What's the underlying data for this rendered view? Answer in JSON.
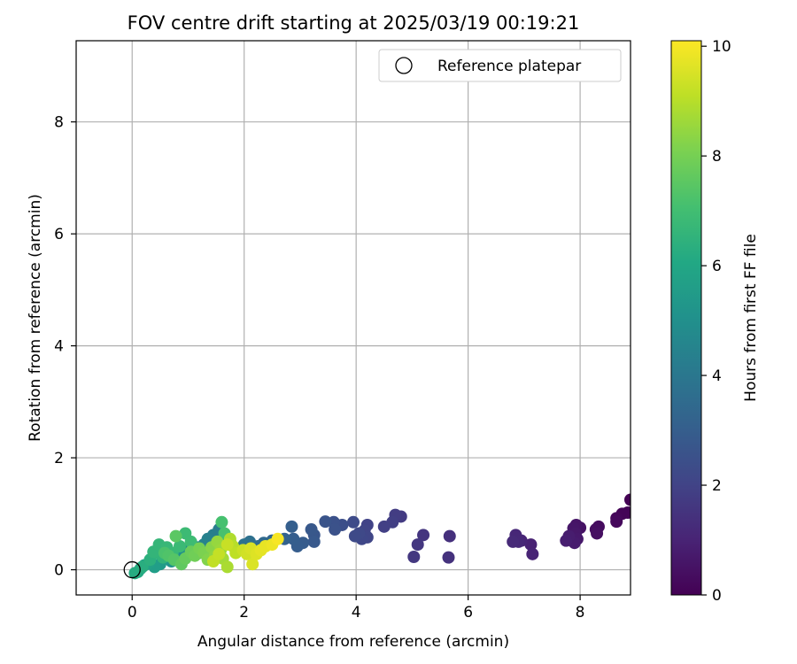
{
  "chart_data": {
    "type": "scatter",
    "title": "FOV centre drift starting at 2025/03/19 00:19:21",
    "xlabel": "Angular distance from reference (arcmin)",
    "ylabel": "Rotation from reference (arcmin)",
    "xlim": [
      -1,
      8.9
    ],
    "ylim": [
      -0.45,
      9.45
    ],
    "xticks": [
      "0",
      "2",
      "4",
      "6",
      "8"
    ],
    "yticks": [
      "0",
      "2",
      "4",
      "6",
      "8"
    ],
    "grid": true,
    "legend": {
      "position": "top-right",
      "entries": [
        "Reference platepar"
      ]
    },
    "reference_point": {
      "x": 0,
      "y": 0
    },
    "colorbar": {
      "label": "Hours from first FF file",
      "range": [
        0,
        10.1
      ],
      "ticks": [
        "0",
        "2",
        "4",
        "6",
        "8",
        "10"
      ],
      "colormap": "viridis"
    },
    "points": [
      {
        "x": 8.9,
        "y": 1.25,
        "h": 0.0
      },
      {
        "x": 8.85,
        "y": 1.02,
        "h": 0.05
      },
      {
        "x": 8.75,
        "y": 1.0,
        "h": 0.1
      },
      {
        "x": 8.65,
        "y": 0.92,
        "h": 0.15
      },
      {
        "x": 8.65,
        "y": 0.86,
        "h": 0.2
      },
      {
        "x": 8.33,
        "y": 0.77,
        "h": 0.3
      },
      {
        "x": 8.28,
        "y": 0.72,
        "h": 0.35
      },
      {
        "x": 8.3,
        "y": 0.65,
        "h": 0.4
      },
      {
        "x": 8.0,
        "y": 0.75,
        "h": 0.5
      },
      {
        "x": 7.93,
        "y": 0.8,
        "h": 0.55
      },
      {
        "x": 7.88,
        "y": 0.74,
        "h": 0.6
      },
      {
        "x": 7.92,
        "y": 0.65,
        "h": 0.65
      },
      {
        "x": 7.95,
        "y": 0.55,
        "h": 0.7
      },
      {
        "x": 7.9,
        "y": 0.48,
        "h": 0.75
      },
      {
        "x": 7.8,
        "y": 0.6,
        "h": 0.8
      },
      {
        "x": 7.75,
        "y": 0.52,
        "h": 0.85
      },
      {
        "x": 7.12,
        "y": 0.45,
        "h": 0.95
      },
      {
        "x": 7.15,
        "y": 0.28,
        "h": 1.0
      },
      {
        "x": 6.95,
        "y": 0.52,
        "h": 1.05
      },
      {
        "x": 6.85,
        "y": 0.62,
        "h": 1.1
      },
      {
        "x": 6.9,
        "y": 0.5,
        "h": 1.15
      },
      {
        "x": 6.8,
        "y": 0.5,
        "h": 1.2
      },
      {
        "x": 5.67,
        "y": 0.6,
        "h": 1.4
      },
      {
        "x": 5.65,
        "y": 0.22,
        "h": 1.45
      },
      {
        "x": 5.2,
        "y": 0.62,
        "h": 1.55
      },
      {
        "x": 5.1,
        "y": 0.45,
        "h": 1.6
      },
      {
        "x": 5.03,
        "y": 0.23,
        "h": 1.65
      },
      {
        "x": 4.8,
        "y": 0.95,
        "h": 1.75
      },
      {
        "x": 4.7,
        "y": 0.98,
        "h": 1.8
      },
      {
        "x": 4.65,
        "y": 0.85,
        "h": 1.85
      },
      {
        "x": 4.5,
        "y": 0.77,
        "h": 1.9
      },
      {
        "x": 4.2,
        "y": 0.8,
        "h": 2.0
      },
      {
        "x": 4.15,
        "y": 0.7,
        "h": 2.05
      },
      {
        "x": 4.2,
        "y": 0.58,
        "h": 2.1
      },
      {
        "x": 4.1,
        "y": 0.55,
        "h": 2.15
      },
      {
        "x": 4.05,
        "y": 0.65,
        "h": 2.2
      },
      {
        "x": 3.98,
        "y": 0.6,
        "h": 2.25
      },
      {
        "x": 3.95,
        "y": 0.85,
        "h": 2.3
      },
      {
        "x": 3.75,
        "y": 0.8,
        "h": 2.4
      },
      {
        "x": 3.6,
        "y": 0.85,
        "h": 2.5
      },
      {
        "x": 3.62,
        "y": 0.72,
        "h": 2.55
      },
      {
        "x": 3.45,
        "y": 0.86,
        "h": 2.6
      },
      {
        "x": 3.25,
        "y": 0.62,
        "h": 2.7
      },
      {
        "x": 3.2,
        "y": 0.72,
        "h": 2.75
      },
      {
        "x": 3.25,
        "y": 0.5,
        "h": 2.8
      },
      {
        "x": 3.05,
        "y": 0.48,
        "h": 2.9
      },
      {
        "x": 2.95,
        "y": 0.42,
        "h": 2.95
      },
      {
        "x": 2.88,
        "y": 0.55,
        "h": 3.0
      },
      {
        "x": 2.85,
        "y": 0.77,
        "h": 3.05
      },
      {
        "x": 2.72,
        "y": 0.55,
        "h": 3.15
      },
      {
        "x": 2.5,
        "y": 0.52,
        "h": 3.3
      },
      {
        "x": 2.35,
        "y": 0.48,
        "h": 3.45
      },
      {
        "x": 2.25,
        "y": 0.42,
        "h": 3.6
      },
      {
        "x": 2.1,
        "y": 0.5,
        "h": 3.7
      },
      {
        "x": 2.0,
        "y": 0.45,
        "h": 3.8
      },
      {
        "x": 1.9,
        "y": 0.35,
        "h": 3.9
      },
      {
        "x": 1.75,
        "y": 0.5,
        "h": 4.0
      },
      {
        "x": 1.65,
        "y": 0.6,
        "h": 4.1
      },
      {
        "x": 1.55,
        "y": 0.72,
        "h": 4.2
      },
      {
        "x": 1.45,
        "y": 0.62,
        "h": 4.3
      },
      {
        "x": 1.35,
        "y": 0.55,
        "h": 4.4
      },
      {
        "x": 1.28,
        "y": 0.45,
        "h": 4.5
      },
      {
        "x": 1.15,
        "y": 0.4,
        "h": 4.6
      },
      {
        "x": 1.0,
        "y": 0.35,
        "h": 4.75
      },
      {
        "x": 0.9,
        "y": 0.28,
        "h": 4.9
      },
      {
        "x": 0.8,
        "y": 0.22,
        "h": 5.0
      },
      {
        "x": 0.7,
        "y": 0.15,
        "h": 5.15
      },
      {
        "x": 0.6,
        "y": 0.2,
        "h": 5.3
      },
      {
        "x": 0.5,
        "y": 0.1,
        "h": 5.5
      },
      {
        "x": 0.4,
        "y": 0.05,
        "h": 5.6
      },
      {
        "x": 0.3,
        "y": 0.12,
        "h": 5.75
      },
      {
        "x": 0.22,
        "y": 0.08,
        "h": 5.85
      },
      {
        "x": 0.15,
        "y": 0.02,
        "h": 6.0
      },
      {
        "x": 0.1,
        "y": -0.04,
        "h": 6.1
      },
      {
        "x": 0.05,
        "y": -0.06,
        "h": 6.2
      },
      {
        "x": 0.18,
        "y": 0.05,
        "h": 6.3
      },
      {
        "x": 0.32,
        "y": 0.18,
        "h": 6.4
      },
      {
        "x": 0.45,
        "y": 0.3,
        "h": 6.5
      },
      {
        "x": 0.55,
        "y": 0.22,
        "h": 6.55
      },
      {
        "x": 0.38,
        "y": 0.32,
        "h": 6.6
      },
      {
        "x": 0.48,
        "y": 0.45,
        "h": 6.65
      },
      {
        "x": 0.62,
        "y": 0.4,
        "h": 6.7
      },
      {
        "x": 0.72,
        "y": 0.3,
        "h": 6.75
      },
      {
        "x": 0.85,
        "y": 0.42,
        "h": 6.8
      },
      {
        "x": 0.95,
        "y": 0.65,
        "h": 6.85
      },
      {
        "x": 1.05,
        "y": 0.5,
        "h": 6.9
      },
      {
        "x": 1.2,
        "y": 0.3,
        "h": 6.95
      },
      {
        "x": 1.4,
        "y": 0.25,
        "h": 7.0
      },
      {
        "x": 1.5,
        "y": 0.45,
        "h": 7.05
      },
      {
        "x": 1.6,
        "y": 0.85,
        "h": 7.1
      },
      {
        "x": 1.65,
        "y": 0.65,
        "h": 7.15
      },
      {
        "x": 0.58,
        "y": 0.3,
        "h": 7.2
      },
      {
        "x": 0.65,
        "y": 0.25,
        "h": 7.3
      },
      {
        "x": 0.75,
        "y": 0.18,
        "h": 7.4
      },
      {
        "x": 0.78,
        "y": 0.6,
        "h": 7.5
      },
      {
        "x": 0.88,
        "y": 0.1,
        "h": 7.6
      },
      {
        "x": 0.95,
        "y": 0.2,
        "h": 7.7
      },
      {
        "x": 1.05,
        "y": 0.32,
        "h": 7.8
      },
      {
        "x": 1.12,
        "y": 0.25,
        "h": 7.9
      },
      {
        "x": 1.2,
        "y": 0.38,
        "h": 8.0
      },
      {
        "x": 1.28,
        "y": 0.3,
        "h": 8.1
      },
      {
        "x": 1.35,
        "y": 0.18,
        "h": 8.2
      },
      {
        "x": 1.42,
        "y": 0.4,
        "h": 8.3
      },
      {
        "x": 1.48,
        "y": 0.25,
        "h": 8.4
      },
      {
        "x": 1.52,
        "y": 0.5,
        "h": 8.5
      },
      {
        "x": 1.58,
        "y": 0.35,
        "h": 8.6
      },
      {
        "x": 1.62,
        "y": 0.2,
        "h": 8.7
      },
      {
        "x": 1.7,
        "y": 0.05,
        "h": 8.8
      },
      {
        "x": 1.75,
        "y": 0.55,
        "h": 8.9
      },
      {
        "x": 1.8,
        "y": 0.42,
        "h": 9.0
      },
      {
        "x": 1.85,
        "y": 0.3,
        "h": 9.1
      },
      {
        "x": 1.45,
        "y": 0.15,
        "h": 9.15
      },
      {
        "x": 1.55,
        "y": 0.28,
        "h": 9.2
      },
      {
        "x": 1.7,
        "y": 0.45,
        "h": 9.25
      },
      {
        "x": 1.98,
        "y": 0.35,
        "h": 9.3
      },
      {
        "x": 2.05,
        "y": 0.28,
        "h": 9.4
      },
      {
        "x": 2.12,
        "y": 0.38,
        "h": 9.5
      },
      {
        "x": 2.15,
        "y": 0.1,
        "h": 9.55
      },
      {
        "x": 2.22,
        "y": 0.28,
        "h": 9.6
      },
      {
        "x": 2.3,
        "y": 0.35,
        "h": 9.7
      },
      {
        "x": 2.38,
        "y": 0.42,
        "h": 9.75
      },
      {
        "x": 2.5,
        "y": 0.45,
        "h": 9.85
      },
      {
        "x": 2.6,
        "y": 0.55,
        "h": 10.0
      }
    ]
  }
}
